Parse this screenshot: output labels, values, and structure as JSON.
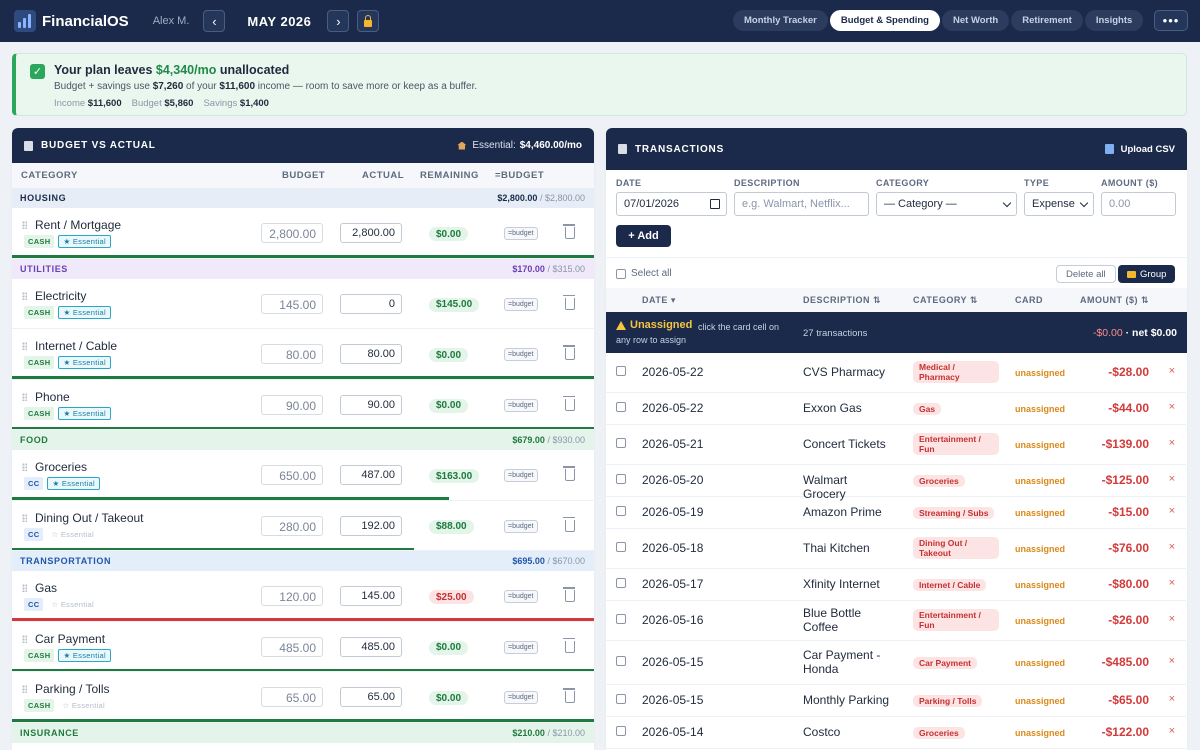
{
  "app": {
    "name": "FinancialOS",
    "user": "Alex M.",
    "month": "MAY 2026",
    "prev": "‹",
    "next": "›",
    "more": "•••"
  },
  "tabs": [
    "Monthly Tracker",
    "Budget & Spending",
    "Net Worth",
    "Retirement",
    "Insights"
  ],
  "active_tab": "Budget & Spending",
  "alert": {
    "check": "✓",
    "title_pre": "Your plan leaves ",
    "title_amount": "$4,340/mo",
    "title_post": " unallocated",
    "sub_pre": "Budget + savings use ",
    "sub_used": "$7,260",
    "sub_mid": " of your ",
    "sub_income": "$11,600",
    "sub_post": " income — room to save more or keep as a buffer.",
    "income_label": "Income",
    "income": "$11,600",
    "budget_label": "Budget",
    "budget": "$5,860",
    "savings_label": "Savings",
    "savings": "$1,400"
  },
  "budget": {
    "title": "BUDGET VS ACTUAL",
    "essential_label": "Essential:",
    "essential_value": "$4,460.00/mo",
    "headers": {
      "category": "CATEGORY",
      "budget": "BUDGET",
      "actual": "ACTUAL",
      "remaining": "REMAINING",
      "eq": "=BUDGET"
    },
    "groups": [
      {
        "name": "HOUSING",
        "actual": "$2,800.00",
        "budget": "/ $2,800.00",
        "rows": [
          {
            "name": "Rent / Mortgage",
            "pay": "CASH",
            "ess": "★ Essential",
            "essential": true,
            "budget": "2,800.00",
            "actual": "2,800.00",
            "remaining": "$0.00",
            "status": "pos",
            "progress": 1.0,
            "bar": "#1f7a40"
          }
        ]
      },
      {
        "name": "UTILITIES",
        "actual": "$170.00",
        "budget": "/ $315.00",
        "rows": [
          {
            "name": "Electricity",
            "pay": "CASH",
            "ess": "★ Essential",
            "essential": true,
            "budget": "145.00",
            "actual": "0",
            "remaining": "$145.00",
            "status": "pos",
            "progress": 0,
            "bar": "#1f7a40"
          },
          {
            "name": "Internet / Cable",
            "pay": "CASH",
            "ess": "★ Essential",
            "essential": true,
            "budget": "80.00",
            "actual": "80.00",
            "remaining": "$0.00",
            "status": "pos",
            "progress": 1.0,
            "bar": "#1f7a40"
          },
          {
            "name": "Phone",
            "pay": "CASH",
            "ess": "★ Essential",
            "essential": true,
            "budget": "90.00",
            "actual": "90.00",
            "remaining": "$0.00",
            "status": "pos",
            "progress": 1.0,
            "bar": "#1f7a40"
          }
        ]
      },
      {
        "name": "FOOD",
        "actual": "$679.00",
        "budget": "/ $930.00",
        "rows": [
          {
            "name": "Groceries",
            "pay": "CC",
            "ess": "★ Essential",
            "essential": true,
            "budget": "650.00",
            "actual": "487.00",
            "remaining": "$163.00",
            "status": "pos",
            "progress": 0.75,
            "bar": "#1f7a40"
          },
          {
            "name": "Dining Out / Takeout",
            "pay": "CC",
            "ess": "☆ Essential",
            "essential": false,
            "budget": "280.00",
            "actual": "192.00",
            "remaining": "$88.00",
            "status": "pos",
            "progress": 0.69,
            "bar": "#1f7a40"
          }
        ]
      },
      {
        "name": "TRANSPORTATION",
        "actual": "$695.00",
        "budget": "/ $670.00",
        "rows": [
          {
            "name": "Gas",
            "pay": "CC",
            "ess": "☆ Essential",
            "essential": false,
            "budget": "120.00",
            "actual": "145.00",
            "remaining": "$25.00",
            "status": "neg",
            "progress": 1.0,
            "bar": "#d33a3a"
          },
          {
            "name": "Car Payment",
            "pay": "CASH",
            "ess": "★ Essential",
            "essential": true,
            "budget": "485.00",
            "actual": "485.00",
            "remaining": "$0.00",
            "status": "pos",
            "progress": 1.0,
            "bar": "#1f7a40"
          },
          {
            "name": "Parking / Tolls",
            "pay": "CASH",
            "ess": "☆ Essential",
            "essential": false,
            "budget": "65.00",
            "actual": "65.00",
            "remaining": "$0.00",
            "status": "pos",
            "progress": 1.0,
            "bar": "#1f7a40"
          }
        ]
      },
      {
        "name": "INSURANCE",
        "actual": "$210.00",
        "budget": "/ $210.00",
        "rows": []
      }
    ],
    "eq_label": "=budget"
  },
  "transactions": {
    "title": "TRANSACTIONS",
    "upload": "Upload CSV",
    "form": {
      "date_label": "DATE",
      "date_value": "07/01/2026",
      "desc_label": "DESCRIPTION",
      "desc_placeholder": "e.g. Walmart, Netflix...",
      "cat_label": "CATEGORY",
      "cat_value": "— Category —",
      "type_label": "TYPE",
      "type_value": "Expense",
      "amt_label": "AMOUNT ($)",
      "amt_placeholder": "0.00",
      "add": "+ Add"
    },
    "select_all": "Select all",
    "delete_all": "Delete all",
    "group": "Group",
    "headers": {
      "date": "DATE ▾",
      "description": "DESCRIPTION ⇅",
      "category": "CATEGORY ⇅",
      "card": "CARD",
      "amount": "AMOUNT ($) ⇅"
    },
    "unassigned": {
      "title": "Unassigned",
      "hint1": "click the card cell on",
      "hint2": "any row to assign",
      "count": "27 transactions",
      "neg": "-$0.00",
      "net": "· net $0.00"
    },
    "rows": [
      {
        "date": "2026-05-22",
        "desc": "CVS Pharmacy",
        "cat": "Medical / Pharmacy",
        "card": "unassigned",
        "amt": "-$28.00"
      },
      {
        "date": "2026-05-22",
        "desc": "Exxon Gas",
        "cat": "Gas",
        "card": "unassigned",
        "amt": "-$44.00"
      },
      {
        "date": "2026-05-21",
        "desc": "Concert Tickets",
        "cat": "Entertainment / Fun",
        "card": "unassigned",
        "amt": "-$139.00"
      },
      {
        "date": "2026-05-20",
        "desc": "Walmart Grocery",
        "cat": "Groceries",
        "card": "unassigned",
        "amt": "-$125.00"
      },
      {
        "date": "2026-05-19",
        "desc": "Amazon Prime",
        "cat": "Streaming / Subs",
        "card": "unassigned",
        "amt": "-$15.00"
      },
      {
        "date": "2026-05-18",
        "desc": "Thai Kitchen",
        "cat": "Dining Out / Takeout",
        "card": "unassigned",
        "amt": "-$76.00"
      },
      {
        "date": "2026-05-17",
        "desc": "Xfinity Internet",
        "cat": "Internet / Cable",
        "card": "unassigned",
        "amt": "-$80.00"
      },
      {
        "date": "2026-05-16",
        "desc": "Blue Bottle Coffee",
        "cat": "Entertainment / Fun",
        "card": "unassigned",
        "amt": "-$26.00"
      },
      {
        "date": "2026-05-15",
        "desc": "Car Payment - Honda",
        "cat": "Car Payment",
        "card": "unassigned",
        "amt": "-$485.00"
      },
      {
        "date": "2026-05-15",
        "desc": "Monthly Parking",
        "cat": "Parking / Tolls",
        "card": "unassigned",
        "amt": "-$65.00"
      },
      {
        "date": "2026-05-14",
        "desc": "Costco",
        "cat": "Groceries",
        "card": "unassigned",
        "amt": "-$122.00"
      }
    ],
    "delete_glyph": "×"
  }
}
